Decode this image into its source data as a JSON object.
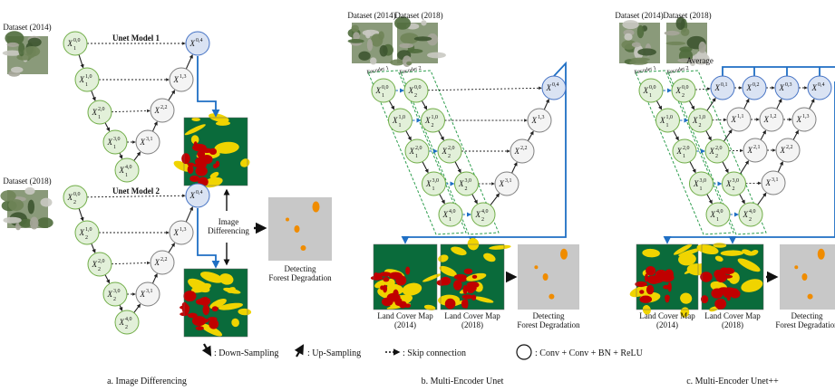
{
  "panels": [
    {
      "caption": "a. Image Differencing",
      "datasets": [
        "Dataset (2014)",
        "Dataset (2018)"
      ],
      "models": [
        "Unet Model 1",
        "Unet Model 2"
      ],
      "operation": [
        "Image",
        "Differencing"
      ],
      "result": [
        "Detecting",
        "Forest Degradation"
      ],
      "nodes": [
        {
          "base": "X",
          "sub": "1",
          "sup": "0,0"
        },
        {
          "base": "X",
          "sub": "1",
          "sup": "1,0"
        },
        {
          "base": "X",
          "sub": "1",
          "sup": "2,0"
        },
        {
          "base": "X",
          "sub": "1",
          "sup": "3,0"
        },
        {
          "base": "X",
          "sub": "1",
          "sup": "4,0"
        },
        {
          "base": "X",
          "sup": "3,1"
        },
        {
          "base": "X",
          "sup": "2,2"
        },
        {
          "base": "X",
          "sup": "1,3"
        },
        {
          "base": "X",
          "sup": "0,4"
        },
        {
          "base": "X",
          "sub": "2",
          "sup": "0,0"
        },
        {
          "base": "X",
          "sub": "2",
          "sup": "1,0"
        },
        {
          "base": "X",
          "sub": "2",
          "sup": "2,0"
        },
        {
          "base": "X",
          "sub": "2",
          "sup": "3,0"
        },
        {
          "base": "X",
          "sub": "2",
          "sup": "4,0"
        },
        {
          "base": "X",
          "sup": "3,1"
        },
        {
          "base": "X",
          "sup": "2,2"
        },
        {
          "base": "X",
          "sup": "1,3"
        },
        {
          "base": "X",
          "sup": "0,4"
        }
      ]
    },
    {
      "caption": "b. Multi-Encoder Unet",
      "datasets": [
        "Dataset (2014)",
        "Dataset (2018)"
      ],
      "encoders": [
        "Encoder 1",
        "Encoder 2"
      ],
      "maps": [
        [
          "Land Cover Map",
          "(2014)"
        ],
        [
          "Land Cover Map",
          "(2018)"
        ]
      ],
      "result": [
        "Detecting",
        "Forest Degradation"
      ],
      "nodes": [
        {
          "base": "X",
          "sub": "1",
          "sup": "0,0"
        },
        {
          "base": "X",
          "sub": "1",
          "sup": "1,0"
        },
        {
          "base": "X",
          "sub": "1",
          "sup": "2,0"
        },
        {
          "base": "X",
          "sub": "1",
          "sup": "3,0"
        },
        {
          "base": "X",
          "sub": "1",
          "sup": "4,0"
        },
        {
          "base": "X",
          "sub": "2",
          "sup": "0,0"
        },
        {
          "base": "X",
          "sub": "2",
          "sup": "1,0"
        },
        {
          "base": "X",
          "sub": "2",
          "sup": "2,0"
        },
        {
          "base": "X",
          "sub": "2",
          "sup": "3,0"
        },
        {
          "base": "X",
          "sub": "2",
          "sup": "4,0"
        },
        {
          "base": "X",
          "sup": "3,1"
        },
        {
          "base": "X",
          "sup": "2,2"
        },
        {
          "base": "X",
          "sup": "1,3"
        },
        {
          "base": "X",
          "sup": "0,4"
        }
      ]
    },
    {
      "caption": "c. Multi-Encoder Unet++",
      "datasets": [
        "Dataset (2014)",
        "Dataset (2018)"
      ],
      "encoders": [
        "Encoder 1",
        "Encoder 2"
      ],
      "average": "Average",
      "maps": [
        [
          "Land Cover Map",
          "(2014)"
        ],
        [
          "Land Cover Map",
          "(2018)"
        ]
      ],
      "result": [
        "Detecting",
        "Forest Degradation"
      ],
      "nodes": [
        {
          "base": "X",
          "sub": "1",
          "sup": "0,0"
        },
        {
          "base": "X",
          "sub": "1",
          "sup": "1,0"
        },
        {
          "base": "X",
          "sub": "1",
          "sup": "2,0"
        },
        {
          "base": "X",
          "sub": "1",
          "sup": "3,0"
        },
        {
          "base": "X",
          "sub": "1",
          "sup": "4,0"
        },
        {
          "base": "X",
          "sub": "2",
          "sup": "0,0"
        },
        {
          "base": "X",
          "sub": "2",
          "sup": "1,0"
        },
        {
          "base": "X",
          "sub": "2",
          "sup": "2,0"
        },
        {
          "base": "X",
          "sub": "2",
          "sup": "3,0"
        },
        {
          "base": "X",
          "sub": "2",
          "sup": "4,0"
        },
        {
          "base": "X",
          "sup": "0,1"
        },
        {
          "base": "X",
          "sup": "0,2"
        },
        {
          "base": "X",
          "sup": "0,3"
        },
        {
          "base": "X",
          "sup": "0,4"
        },
        {
          "base": "X",
          "sup": "1,1"
        },
        {
          "base": "X",
          "sup": "1,2"
        },
        {
          "base": "X",
          "sup": "1,3"
        },
        {
          "base": "X",
          "sup": "2,1"
        },
        {
          "base": "X",
          "sup": "2,2"
        },
        {
          "base": "X",
          "sup": "3,1"
        }
      ]
    }
  ],
  "legend": [
    ": Down-Sampling",
    ": Up-Sampling",
    ": Skip connection",
    ": Conv + Conv + BN + ReLU"
  ]
}
